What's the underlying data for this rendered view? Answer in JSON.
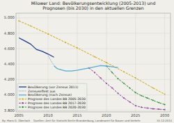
{
  "chart_data": {
    "type": "line",
    "title": "Milower Land: Bevölkerungsentwicklung (2005-2013) und\nPrognosen (bis 2030) in den aktuellen Grenzen",
    "xlim": [
      2004.5,
      2031.0
    ],
    "ylim": [
      3780,
      5060
    ],
    "xticks": [
      2005,
      2010,
      2015,
      2020,
      2025,
      2030
    ],
    "yticks": [
      {
        "value": 3800,
        "label": "3.800"
      },
      {
        "value": 4000,
        "label": "4.000"
      },
      {
        "value": 4200,
        "label": "4.200"
      },
      {
        "value": 4400,
        "label": "4.400"
      },
      {
        "value": 4600,
        "label": "4.600"
      },
      {
        "value": 4800,
        "label": "4.800"
      },
      {
        "value": 5000,
        "label": "5.000"
      }
    ],
    "grid": true,
    "legend": "lower left",
    "annotations": [
      "By: Hans G. Oberlack",
      "Quellen: Amt für Statistik Berlin-Brandenburg, Landesamt für Bauen und Verkehr",
      "31.12.2014"
    ],
    "series": [
      {
        "name": "Bevölkerung (vor Zensus 2011)",
        "color": "#1a3a8a",
        "line_style": "solid",
        "x": [
          2005,
          2006,
          2007,
          2008,
          2009,
          2010,
          2010.5,
          2011
        ],
        "values": [
          4740,
          4700,
          4660,
          4590,
          4565,
          4530,
          4510,
          4490
        ]
      },
      {
        "name": "Zensuseffekt aus",
        "color": "#7788cc",
        "line_style": "dotted",
        "x": [
          2010,
          2010.3,
          2010.6,
          2011
        ],
        "values": [
          4510,
          4470,
          4430,
          4390
        ]
      },
      {
        "name": "Bevölkerung (nach Zensus)",
        "color": "#55aadd",
        "line_style": "solid",
        "x": [
          2011,
          2011.5,
          2012,
          2013,
          2014,
          2015,
          2016,
          2017,
          2018,
          2019,
          2020,
          2021,
          2022
        ],
        "values": [
          4380,
          4345,
          4330,
          4310,
          4310,
          4320,
          4335,
          4350,
          4365,
          4380,
          4375,
          4365,
          4355
        ]
      },
      {
        "name": "Prognose des Landes BB 2005-2030",
        "color": "#c8a800",
        "line_style": "dashed",
        "marker": "circle",
        "x": [
          2005,
          2007,
          2010,
          2013,
          2015,
          2018,
          2020,
          2023,
          2025,
          2028,
          2030
        ],
        "values": [
          4960,
          4895,
          4790,
          4680,
          4610,
          4495,
          4420,
          4300,
          4220,
          4090,
          4010
        ]
      },
      {
        "name": "Prognose des Landes BB 2017-2030",
        "color": "#884499",
        "line_style": "dashed",
        "marker": "square",
        "x": [
          2017,
          2018,
          2019,
          2020,
          2021,
          2022,
          2023,
          2024,
          2025,
          2026,
          2027,
          2028,
          2029,
          2030
        ],
        "values": [
          4350,
          4290,
          4220,
          4150,
          4090,
          4020,
          3960,
          3910,
          3860,
          3840,
          3830,
          3820,
          3815,
          3810
        ]
      },
      {
        "name": "Prognose des Landes BB 2020-2030",
        "color": "#228833",
        "line_style": "dashed",
        "marker": "diamond",
        "x": [
          2020,
          2021,
          2022,
          2023,
          2024,
          2025,
          2026,
          2027,
          2028,
          2029,
          2030
        ],
        "values": [
          4375,
          4290,
          4210,
          4150,
          4090,
          4030,
          3990,
          3960,
          3930,
          3900,
          3875
        ]
      }
    ]
  }
}
